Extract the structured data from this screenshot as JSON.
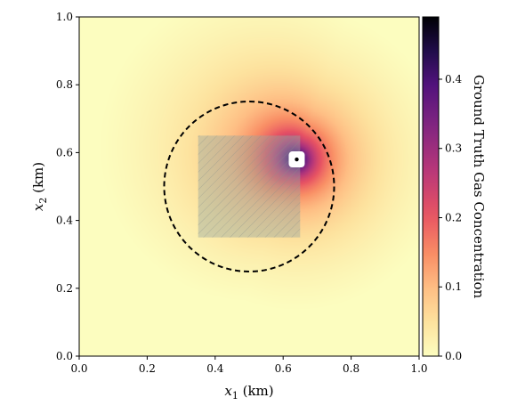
{
  "chart_data": {
    "type": "heatmap",
    "title": "",
    "xlabel": {
      "var": "x",
      "sub": "1",
      "unit": " (km)"
    },
    "ylabel": {
      "var": "x",
      "sub": "2",
      "unit": " (km)"
    },
    "colorbar_label": "Ground Truth Gas Concentration",
    "colormap": "magma_r",
    "xlim": [
      0.0,
      1.0
    ],
    "ylim": [
      0.0,
      1.0
    ],
    "clim": [
      0.0,
      0.49
    ],
    "x_ticks": [
      0.0,
      0.2,
      0.4,
      0.6,
      0.8,
      1.0
    ],
    "x_tick_labels": [
      "0.0",
      "0.2",
      "0.4",
      "0.6",
      "0.8",
      "1.0"
    ],
    "y_ticks": [
      0.0,
      0.2,
      0.4,
      0.6,
      0.8,
      1.0
    ],
    "y_tick_labels": [
      "0.0",
      "0.2",
      "0.4",
      "0.6",
      "0.8",
      "1.0"
    ],
    "colorbar_ticks": [
      0.0,
      0.1,
      0.2,
      0.3,
      0.4
    ],
    "colorbar_tick_labels": [
      "0.0",
      "0.1",
      "0.2",
      "0.3",
      "0.4"
    ],
    "source": {
      "x": 0.64,
      "y": 0.58
    },
    "circle": {
      "center_x": 0.5,
      "center_y": 0.5,
      "radius": 0.25,
      "style": "dashed"
    },
    "hatched_region": {
      "x0": 0.35,
      "x1": 0.65,
      "y0": 0.35,
      "y1": 0.65
    }
  }
}
